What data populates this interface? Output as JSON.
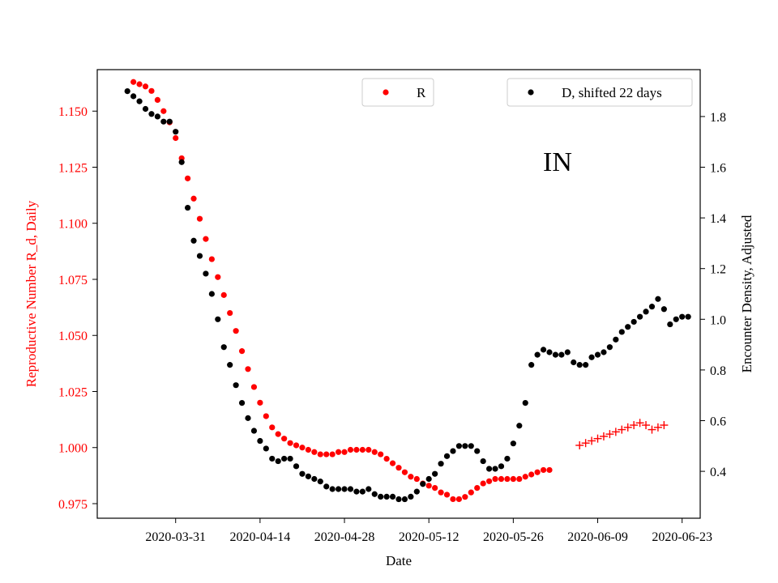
{
  "chart_data": {
    "type": "scatter",
    "annotation": "IN",
    "xlabel": "Date",
    "ylabel_left": "Reproductive Number R_d, Daily",
    "ylabel_right": "Encounter Density, Adjusted",
    "x_range": [
      "2020-03-18",
      "2020-06-26"
    ],
    "ylim_left": [
      0.9685,
      1.1685
    ],
    "ylim_right": [
      0.215,
      1.985
    ],
    "x_ticks": [
      "2020-03-31",
      "2020-04-14",
      "2020-04-28",
      "2020-05-12",
      "2020-05-26",
      "2020-06-09",
      "2020-06-23"
    ],
    "y_ticks_left": [
      "0.975",
      "1.000",
      "1.025",
      "1.050",
      "1.075",
      "1.100",
      "1.125",
      "1.150"
    ],
    "y_ticks_right": [
      "0.4",
      "0.6",
      "0.8",
      "1.0",
      "1.2",
      "1.4",
      "1.6",
      "1.8"
    ],
    "legend": [
      {
        "label": "R",
        "position": "upper-center",
        "color": "#ff0000"
      },
      {
        "label": "D, shifted 22 days",
        "position": "upper-right",
        "color": "#000000"
      }
    ],
    "series": [
      {
        "name": "R",
        "axis": "left",
        "marker": "dot",
        "color": "#ff0000",
        "start_date": "2020-03-24",
        "values": [
          1.163,
          1.162,
          1.161,
          1.159,
          1.155,
          1.15,
          1.145,
          1.138,
          1.129,
          1.12,
          1.111,
          1.102,
          1.093,
          1.084,
          1.076,
          1.068,
          1.06,
          1.052,
          1.043,
          1.035,
          1.027,
          1.02,
          1.014,
          1.009,
          1.006,
          1.004,
          1.002,
          1.001,
          1.0,
          0.999,
          0.998,
          0.997,
          0.997,
          0.997,
          0.998,
          0.998,
          0.999,
          0.999,
          0.999,
          0.999,
          0.998,
          0.997,
          0.995,
          0.993,
          0.991,
          0.989,
          0.987,
          0.986,
          0.984,
          0.983,
          0.982,
          0.98,
          0.979,
          0.977,
          0.977,
          0.978,
          0.98,
          0.982,
          0.984,
          0.985,
          0.986,
          0.986,
          0.986,
          0.986,
          0.986,
          0.987,
          0.988,
          0.989,
          0.99,
          0.99
        ]
      },
      {
        "name": "R (projected)",
        "axis": "left",
        "marker": "plus",
        "color": "#ff0000",
        "start_date": "2020-06-06",
        "values": [
          1.001,
          1.002,
          1.003,
          1.004,
          1.005,
          1.006,
          1.007,
          1.008,
          1.009,
          1.01,
          1.011,
          1.01,
          1.008,
          1.009,
          1.01
        ]
      },
      {
        "name": "D, shifted 22 days",
        "axis": "right",
        "marker": "dot",
        "color": "#000000",
        "start_date": "2020-03-23",
        "values": [
          1.9,
          1.88,
          1.86,
          1.83,
          1.81,
          1.8,
          1.78,
          1.78,
          1.74,
          1.62,
          1.44,
          1.31,
          1.25,
          1.18,
          1.1,
          1.0,
          0.89,
          0.82,
          0.74,
          0.67,
          0.61,
          0.56,
          0.52,
          0.49,
          0.45,
          0.44,
          0.45,
          0.45,
          0.42,
          0.39,
          0.38,
          0.37,
          0.36,
          0.34,
          0.33,
          0.33,
          0.33,
          0.33,
          0.32,
          0.32,
          0.33,
          0.31,
          0.3,
          0.3,
          0.3,
          0.29,
          0.29,
          0.3,
          0.32,
          0.35,
          0.37,
          0.39,
          0.43,
          0.46,
          0.48,
          0.5,
          0.5,
          0.5,
          0.48,
          0.44,
          0.41,
          0.41,
          0.42,
          0.45,
          0.51,
          0.58,
          0.67,
          0.82,
          0.86,
          0.88,
          0.87,
          0.86,
          0.86,
          0.87,
          0.83,
          0.82,
          0.82,
          0.85,
          0.86,
          0.87,
          0.89,
          0.92,
          0.95,
          0.97,
          0.99,
          1.01,
          1.03,
          1.05,
          1.08,
          1.04,
          0.98,
          1.0,
          1.01,
          1.01
        ]
      }
    ]
  }
}
